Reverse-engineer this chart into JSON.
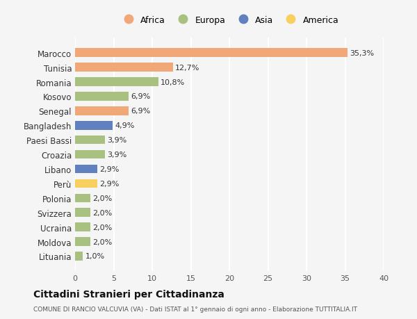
{
  "countries": [
    "Marocco",
    "Tunisia",
    "Romania",
    "Kosovo",
    "Senegal",
    "Bangladesh",
    "Paesi Bassi",
    "Croazia",
    "Libano",
    "Perù",
    "Polonia",
    "Svizzera",
    "Ucraina",
    "Moldova",
    "Lituania"
  ],
  "values": [
    35.3,
    12.7,
    10.8,
    6.9,
    6.9,
    4.9,
    3.9,
    3.9,
    2.9,
    2.9,
    2.0,
    2.0,
    2.0,
    2.0,
    1.0
  ],
  "labels": [
    "35,3%",
    "12,7%",
    "10,8%",
    "6,9%",
    "6,9%",
    "4,9%",
    "3,9%",
    "3,9%",
    "2,9%",
    "2,9%",
    "2,0%",
    "2,0%",
    "2,0%",
    "2,0%",
    "1,0%"
  ],
  "continents": [
    "Africa",
    "Africa",
    "Europa",
    "Europa",
    "Africa",
    "Asia",
    "Europa",
    "Europa",
    "Asia",
    "America",
    "Europa",
    "Europa",
    "Europa",
    "Europa",
    "Europa"
  ],
  "colors": {
    "Africa": "#F0A878",
    "Europa": "#A8C080",
    "Asia": "#6080C0",
    "America": "#F8D060"
  },
  "legend_order": [
    "Africa",
    "Europa",
    "Asia",
    "America"
  ],
  "title": "Cittadini Stranieri per Cittadinanza",
  "subtitle": "COMUNE DI RANCIO VALCUVIA (VA) - Dati ISTAT al 1° gennaio di ogni anno - Elaborazione TUTTITALIA.IT",
  "xlim": [
    0,
    40
  ],
  "xticks": [
    0,
    5,
    10,
    15,
    20,
    25,
    30,
    35,
    40
  ],
  "bg_color": "#f5f5f5"
}
